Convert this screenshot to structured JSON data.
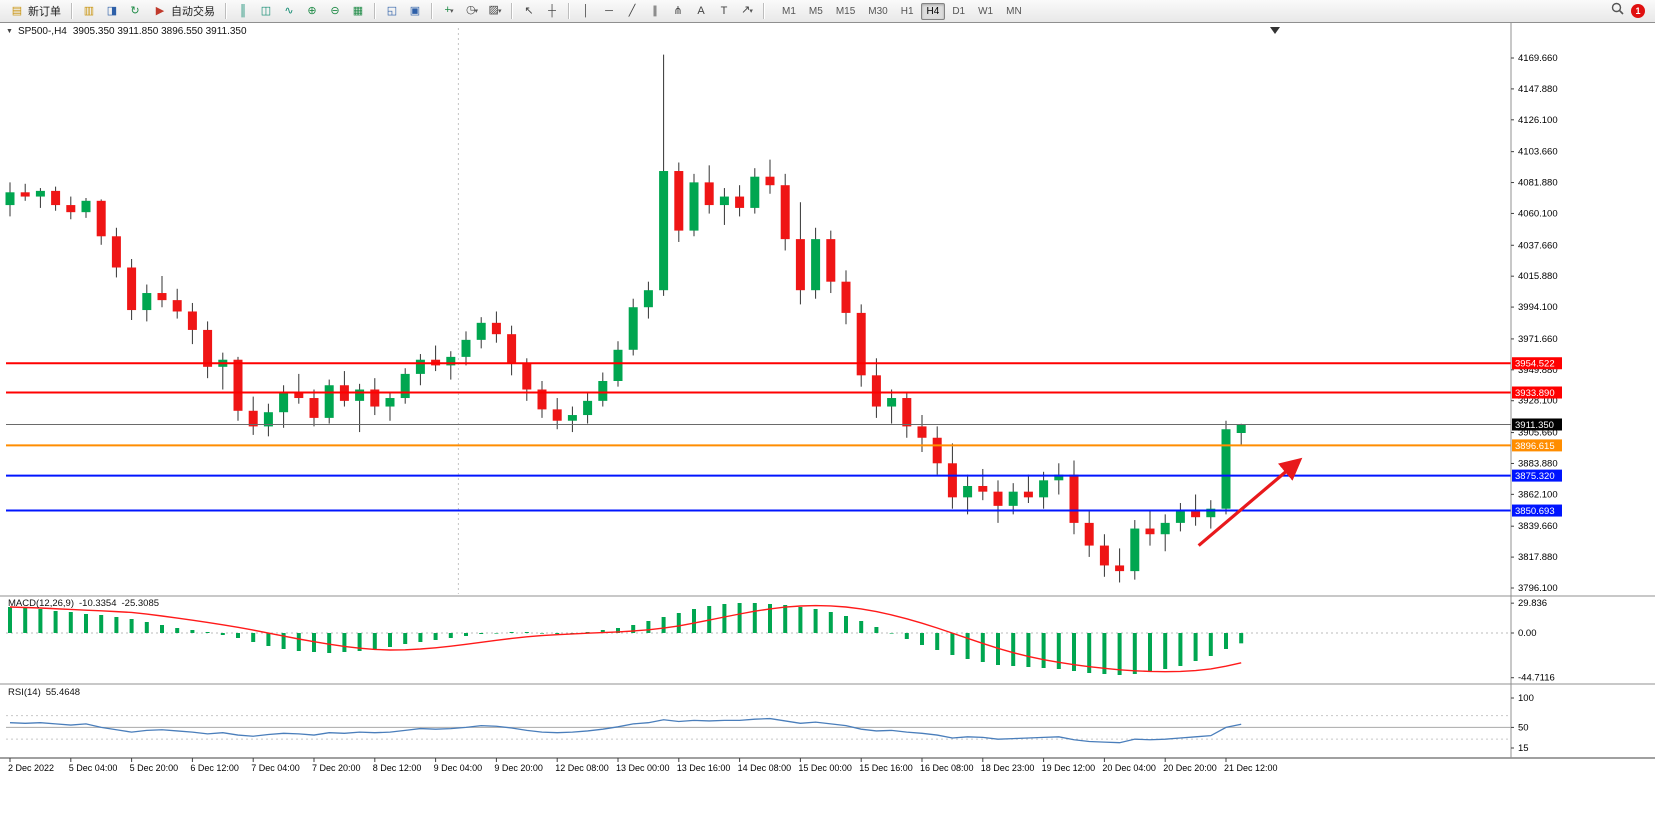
{
  "toolbar": {
    "new_order_label": "新订单",
    "autotrading_label": "自动交易",
    "timeframes": [
      "M1",
      "M5",
      "M15",
      "M30",
      "H1",
      "H4",
      "D1",
      "W1",
      "MN"
    ],
    "active_timeframe": "H4",
    "notification_count": "1",
    "glyphs": {
      "new_order": "▤",
      "market_watch": "▥",
      "navigator": "◨",
      "refresh": "↻",
      "autotrading": "▶",
      "bars_chart": "║",
      "candle_chart": "◫",
      "line_chart": "∿",
      "zoom_in": "⊕",
      "zoom_out": "⊖",
      "grid": "▦",
      "tile_windows": "◱",
      "indicator_window": "▣",
      "add_indicator": "+",
      "clock": "◷",
      "template": "▨",
      "cursor": "↖",
      "crosshair": "┼",
      "vline": "│",
      "hline": "─",
      "trendline": "╱",
      "channel": "∥",
      "fibonacci": "⋔",
      "text": "A",
      "text_label": "T",
      "shapes": "↗",
      "caret": "▾"
    }
  },
  "chart_header": {
    "marker": "▼",
    "title": "SP500-,H4",
    "ohlc": "3905.350 3911.850 3896.550 3911.350"
  },
  "chart_data": {
    "type": "candlestick",
    "symbol": "SP500-",
    "timeframe": "H4",
    "up_color": "#00a650",
    "down_color": "#ef1515",
    "price_ticks": [
      "4169.660",
      "4147.880",
      "4126.100",
      "4103.660",
      "4081.880",
      "4060.100",
      "4037.660",
      "4015.880",
      "3994.100",
      "3971.660",
      "3949.880",
      "3928.100",
      "3905.660",
      "3883.880",
      "3862.100",
      "3839.660",
      "3817.880",
      "3796.100"
    ],
    "time_labels": [
      "2 Dec 2022",
      "5 Dec 04:00",
      "5 Dec 20:00",
      "6 Dec 12:00",
      "7 Dec 04:00",
      "7 Dec 20:00",
      "8 Dec 12:00",
      "9 Dec 04:00",
      "9 Dec 20:00",
      "12 Dec 08:00",
      "13 Dec 00:00",
      "13 Dec 16:00",
      "14 Dec 08:00",
      "15 Dec 00:00",
      "15 Dec 16:00",
      "16 Dec 08:00",
      "18 Dec 23:00",
      "19 Dec 12:00",
      "20 Dec 04:00",
      "20 Dec 20:00",
      "21 Dec 12:00"
    ],
    "candles": [
      [
        4066,
        4082,
        4058,
        4075
      ],
      [
        4075,
        4081,
        4069,
        4072
      ],
      [
        4072,
        4078,
        4064,
        4076
      ],
      [
        4076,
        4079,
        4062,
        4066
      ],
      [
        4066,
        4072,
        4056,
        4061
      ],
      [
        4061,
        4071,
        4057,
        4069
      ],
      [
        4069,
        4070,
        4038,
        4044
      ],
      [
        4044,
        4050,
        4015,
        4022
      ],
      [
        4022,
        4028,
        3985,
        3992
      ],
      [
        3992,
        4010,
        3984,
        4004
      ],
      [
        4004,
        4016,
        3994,
        3999
      ],
      [
        3999,
        4007,
        3986,
        3991
      ],
      [
        3991,
        3997,
        3968,
        3978
      ],
      [
        3978,
        3984,
        3944,
        3952
      ],
      [
        3952,
        3962,
        3936,
        3957
      ],
      [
        3957,
        3959,
        3914,
        3921
      ],
      [
        3921,
        3931,
        3904,
        3910
      ],
      [
        3910,
        3926,
        3903,
        3920
      ],
      [
        3920,
        3939,
        3909,
        3934
      ],
      [
        3934,
        3947,
        3926,
        3930
      ],
      [
        3930,
        3936,
        3910,
        3916
      ],
      [
        3916,
        3943,
        3912,
        3939
      ],
      [
        3939,
        3949,
        3924,
        3928
      ],
      [
        3928,
        3940,
        3906,
        3936
      ],
      [
        3936,
        3944,
        3918,
        3924
      ],
      [
        3924,
        3934,
        3914,
        3930
      ],
      [
        3930,
        3951,
        3926,
        3947
      ],
      [
        3947,
        3961,
        3939,
        3957
      ],
      [
        3957,
        3967,
        3949,
        3953
      ],
      [
        3953,
        3963,
        3943,
        3959
      ],
      [
        3959,
        3977,
        3953,
        3971
      ],
      [
        3971,
        3987,
        3965,
        3983
      ],
      [
        3983,
        3991,
        3969,
        3975
      ],
      [
        3975,
        3981,
        3946,
        3954
      ],
      [
        3954,
        3958,
        3928,
        3936
      ],
      [
        3936,
        3942,
        3916,
        3922
      ],
      [
        3922,
        3930,
        3908,
        3914
      ],
      [
        3914,
        3924,
        3906,
        3918
      ],
      [
        3918,
        3934,
        3912,
        3928
      ],
      [
        3928,
        3948,
        3924,
        3942
      ],
      [
        3942,
        3970,
        3938,
        3964
      ],
      [
        3964,
        4000,
        3960,
        3994
      ],
      [
        3994,
        4012,
        3986,
        4006
      ],
      [
        4006,
        4172,
        4002,
        4090
      ],
      [
        4090,
        4096,
        4040,
        4048
      ],
      [
        4048,
        4088,
        4044,
        4082
      ],
      [
        4082,
        4094,
        4060,
        4066
      ],
      [
        4066,
        4078,
        4052,
        4072
      ],
      [
        4072,
        4080,
        4058,
        4064
      ],
      [
        4064,
        4092,
        4060,
        4086
      ],
      [
        4086,
        4098,
        4074,
        4080
      ],
      [
        4080,
        4088,
        4034,
        4042
      ],
      [
        4042,
        4068,
        3996,
        4006
      ],
      [
        4006,
        4050,
        4000,
        4042
      ],
      [
        4042,
        4048,
        4004,
        4012
      ],
      [
        4012,
        4020,
        3982,
        3990
      ],
      [
        3990,
        3996,
        3938,
        3946
      ],
      [
        3946,
        3958,
        3916,
        3924
      ],
      [
        3924,
        3936,
        3912,
        3930
      ],
      [
        3930,
        3934,
        3902,
        3910
      ],
      [
        3910,
        3918,
        3892,
        3902
      ],
      [
        3902,
        3910,
        3876,
        3884
      ],
      [
        3884,
        3898,
        3852,
        3860
      ],
      [
        3860,
        3876,
        3848,
        3868
      ],
      [
        3868,
        3880,
        3858,
        3864
      ],
      [
        3864,
        3872,
        3842,
        3854
      ],
      [
        3854,
        3870,
        3848,
        3864
      ],
      [
        3864,
        3876,
        3856,
        3860
      ],
      [
        3860,
        3878,
        3852,
        3872
      ],
      [
        3872,
        3884,
        3862,
        3876
      ],
      [
        3876,
        3886,
        3834,
        3842
      ],
      [
        3842,
        3850,
        3818,
        3826
      ],
      [
        3826,
        3834,
        3804,
        3812
      ],
      [
        3812,
        3824,
        3800,
        3808
      ],
      [
        3808,
        3844,
        3802,
        3838
      ],
      [
        3838,
        3850,
        3826,
        3834
      ],
      [
        3834,
        3848,
        3822,
        3842
      ],
      [
        3842,
        3856,
        3836,
        3850
      ],
      [
        3850,
        3862,
        3840,
        3846
      ],
      [
        3846,
        3858,
        3838,
        3852
      ],
      [
        3852,
        3914,
        3848,
        3908
      ],
      [
        3905.35,
        3911.85,
        3896.55,
        3911.35
      ]
    ],
    "hlines": [
      {
        "price": 3954.522,
        "label": "3954.522",
        "color": "#ff0000",
        "width": 2,
        "role": "resistance-line"
      },
      {
        "price": 3933.89,
        "label": "3933.890",
        "color": "#ff0000",
        "width": 2,
        "role": "resistance-line"
      },
      {
        "price": 3911.35,
        "label": "3911.350",
        "color": "#6a6a6a",
        "width": 1,
        "tag": "#000000",
        "role": "bid-price-line"
      },
      {
        "price": 3896.615,
        "label": "3896.615",
        "color": "#ff8d00",
        "width": 2,
        "role": "pivot-line"
      },
      {
        "price": 3875.32,
        "label": "3875.320",
        "color": "#0015ff",
        "width": 2,
        "role": "support-line"
      },
      {
        "price": 3850.693,
        "label": "3850.693",
        "color": "#0015ff",
        "width": 2,
        "role": "support-line"
      }
    ],
    "trend_arrow": {
      "from_bar": 78.2,
      "from_price": 3826,
      "to_bar": 84.7,
      "to_price": 3885,
      "color": "#e8191c"
    },
    "macd": {
      "label": "MACD(12,26,9)",
      "value_main": "-10.3354",
      "value_signal": "-25.3085",
      "scale_ticks": [
        "29.836",
        "0.00",
        "-44.7116"
      ],
      "histogram_color": "#00a650",
      "signal_color": "#ff1a1a",
      "histogram": [
        26,
        25,
        24,
        22,
        21,
        19,
        18,
        16,
        14,
        11,
        8,
        5,
        3,
        1,
        -2,
        -5,
        -9,
        -13,
        -16,
        -18,
        -19,
        -20,
        -19,
        -18,
        -16,
        -14,
        -11,
        -9,
        -7,
        -5,
        -3,
        -1,
        0,
        1,
        1,
        0,
        -1,
        0,
        1,
        3,
        5,
        8,
        12,
        16,
        20,
        24,
        27,
        29,
        30,
        30,
        29,
        28,
        26,
        24,
        21,
        17,
        12,
        6,
        0,
        -6,
        -12,
        -17,
        -22,
        -26,
        -29,
        -32,
        -33,
        -34,
        -35,
        -36,
        -38,
        -40,
        -41,
        -42,
        -41,
        -39,
        -36,
        -33,
        -28,
        -23,
        -16,
        -10.34
      ]
    },
    "rsi": {
      "label": "RSI(14)",
      "value": "55.4648",
      "scale_ticks": [
        "100",
        "50",
        "15"
      ],
      "levels": [
        70,
        30
      ],
      "line_color": "#4a7ebb",
      "values": [
        58,
        57,
        58,
        56,
        54,
        56,
        50,
        46,
        42,
        45,
        46,
        44,
        42,
        39,
        41,
        37,
        35,
        38,
        40,
        39,
        37,
        41,
        40,
        42,
        41,
        42,
        45,
        48,
        47,
        48,
        50,
        53,
        52,
        49,
        45,
        42,
        41,
        42,
        44,
        47,
        51,
        56,
        58,
        63,
        60,
        62,
        61,
        62,
        62,
        64,
        65,
        61,
        57,
        59,
        56,
        53,
        47,
        44,
        45,
        42,
        40,
        37,
        32,
        34,
        33,
        30,
        31,
        32,
        33,
        34,
        29,
        26,
        25,
        24,
        30,
        29,
        30,
        32,
        34,
        36,
        50,
        55.46
      ]
    }
  }
}
